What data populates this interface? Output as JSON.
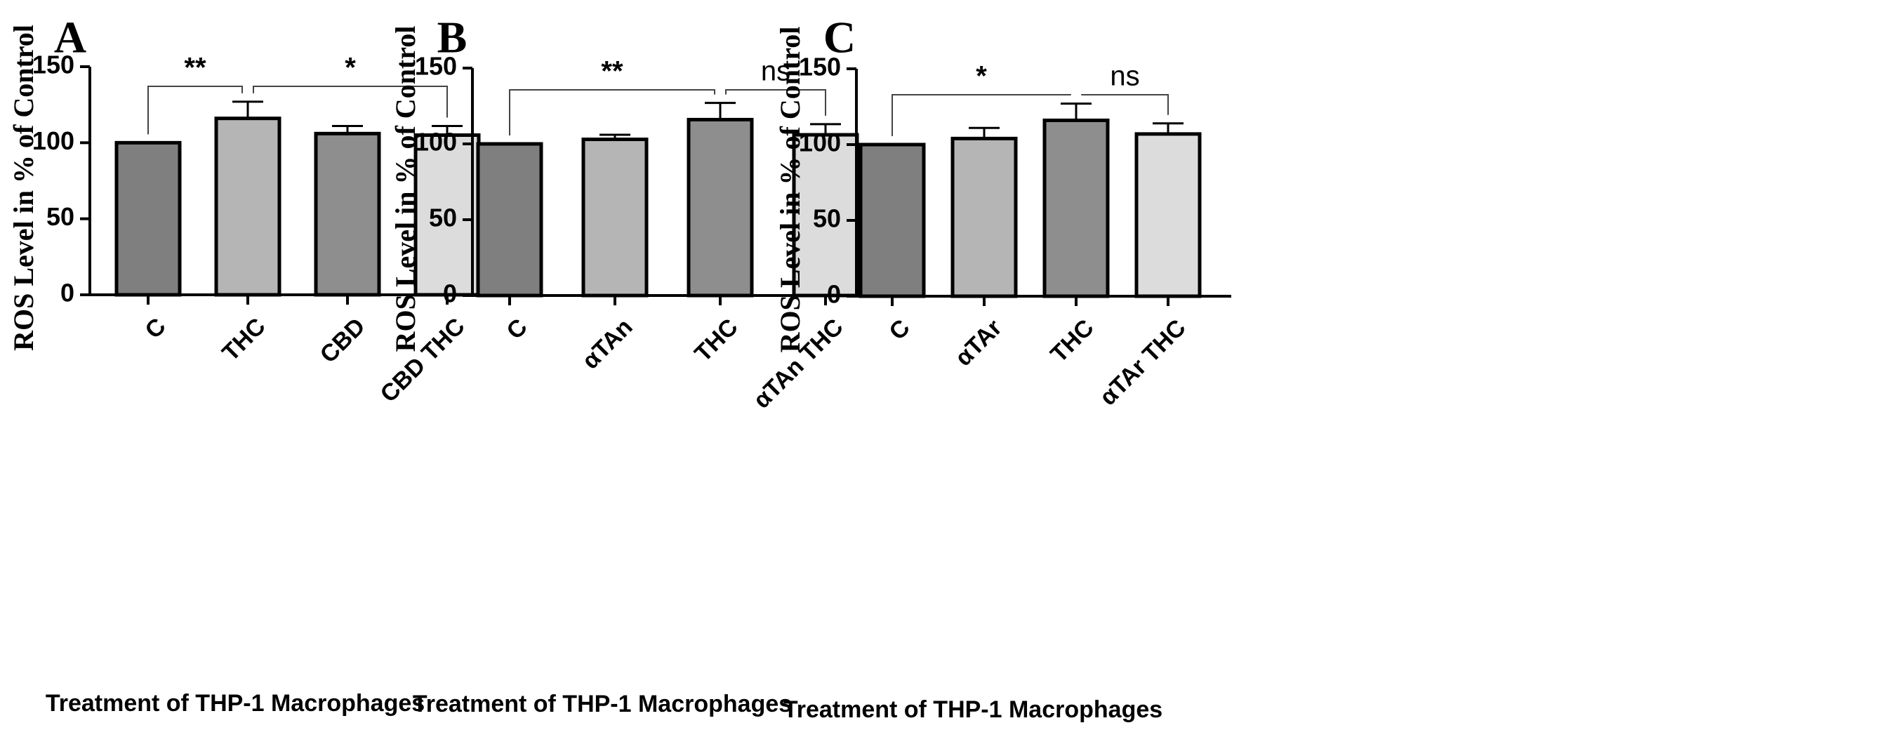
{
  "chart_data": [
    {
      "type": "bar",
      "panel": "A",
      "categories": [
        "C",
        "THC",
        "CBD",
        "CBD THC"
      ],
      "values": [
        100,
        116,
        106,
        105
      ],
      "errors": [
        0,
        11,
        5,
        6
      ],
      "colors": [
        "#7f7f7f",
        "#b5b5b5",
        "#8e8e8e",
        "#dcdcdc"
      ],
      "ylabel": "ROS Level  in  % of Control",
      "xlabel": "Treatment of THP-1 Macrophages",
      "ylim": [
        0,
        150
      ],
      "yticks": [
        0,
        50,
        100,
        150
      ],
      "grid": false,
      "significance": [
        {
          "from": 0,
          "to": 1,
          "label": "**"
        },
        {
          "from": 1,
          "to": 3,
          "label": "*"
        }
      ]
    },
    {
      "type": "bar",
      "panel": "B",
      "categories": [
        "C",
        "αTAn",
        "THC",
        "αTAn THC"
      ],
      "values": [
        100,
        103,
        116,
        106
      ],
      "errors": [
        0,
        3,
        11,
        7
      ],
      "colors": [
        "#7f7f7f",
        "#b5b5b5",
        "#8e8e8e",
        "#dcdcdc"
      ],
      "ylabel": "ROS Level  in  % of Control",
      "xlabel": "Treatment of THP-1 Macrophages",
      "ylim": [
        0,
        150
      ],
      "yticks": [
        0,
        50,
        100,
        150
      ],
      "grid": false,
      "significance": [
        {
          "from": 0,
          "to": 2,
          "label": "**"
        },
        {
          "from": 2,
          "to": 3,
          "label": "ns"
        }
      ]
    },
    {
      "type": "bar",
      "panel": "C",
      "categories": [
        "C",
        "αTAr",
        "THC",
        "αTAr THC"
      ],
      "values": [
        100,
        104,
        116,
        107
      ],
      "errors": [
        0,
        7,
        11,
        7
      ],
      "colors": [
        "#7f7f7f",
        "#b5b5b5",
        "#8e8e8e",
        "#dcdcdc"
      ],
      "ylabel": "ROS Level  in  % of Control",
      "xlabel": "Treatment of THP-1 Macrophages",
      "ylim": [
        0,
        150
      ],
      "yticks": [
        0,
        50,
        100,
        150
      ],
      "grid": false,
      "significance": [
        {
          "from": 0,
          "to": 2,
          "label": "*"
        },
        {
          "from": 2,
          "to": 3,
          "label": "ns"
        }
      ]
    }
  ]
}
